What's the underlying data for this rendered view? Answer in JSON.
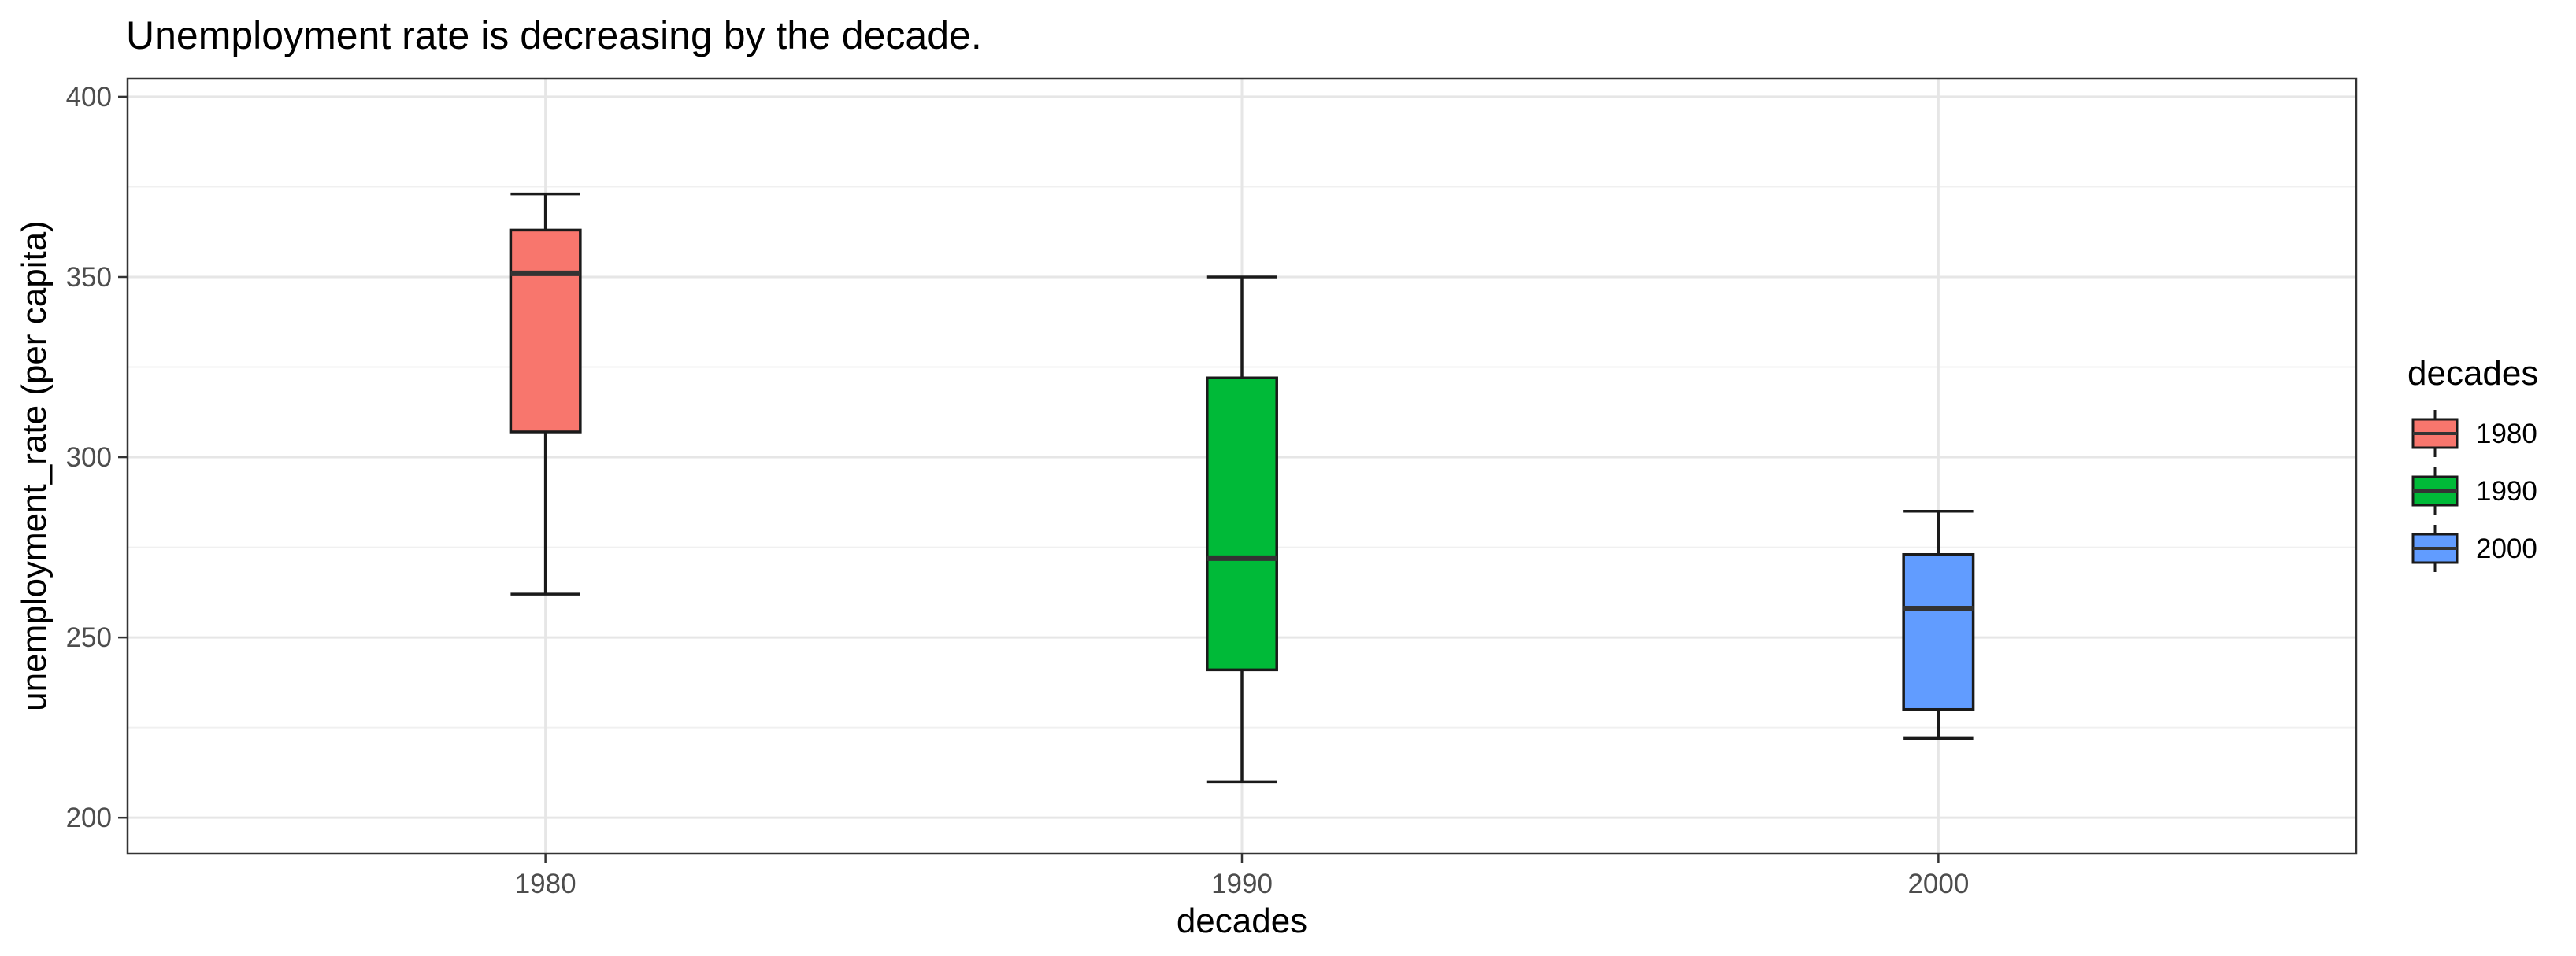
{
  "chart_data": {
    "type": "boxplot",
    "title": "Unemployment rate is decreasing by the decade.",
    "xlabel": "decades",
    "ylabel": "unemployment_rate (per capita)",
    "categories": [
      "1980",
      "1990",
      "2000"
    ],
    "ylim": [
      190,
      405
    ],
    "yticks": [
      200,
      250,
      300,
      350,
      400
    ],
    "grid": true,
    "legend": {
      "title": "decades",
      "position": "right"
    },
    "series": [
      {
        "category": "1980",
        "color": "#F8766D",
        "min": 262,
        "q1": 307,
        "median": 351,
        "q3": 363,
        "max": 373
      },
      {
        "category": "1990",
        "color": "#00BA38",
        "min": 210,
        "q1": 241,
        "median": 272,
        "q3": 322,
        "max": 350
      },
      {
        "category": "2000",
        "color": "#619CFF",
        "min": 222,
        "q1": 230,
        "median": 258,
        "q3": 273,
        "max": 285
      }
    ]
  }
}
